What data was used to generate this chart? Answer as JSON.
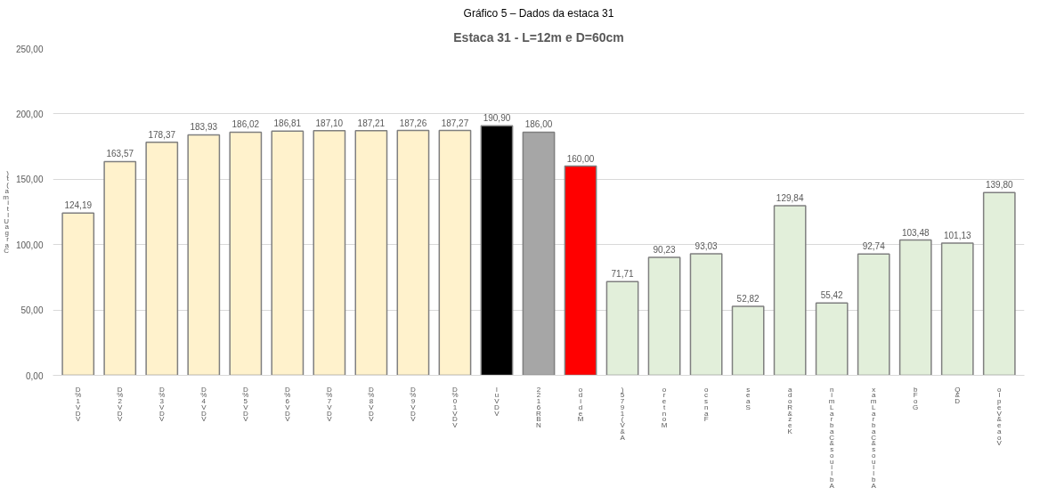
{
  "chart_data": {
    "type": "bar",
    "title": "Estaca 31 - L=12m e D=60cm",
    "subtitle": "Gráfico 5 – Dados da estaca 31",
    "ylabel": ")t(amitlUagraC",
    "categories": [
      "D%1VDV",
      "D%2VDV",
      "D%3VDV",
      "D%4VDV",
      "D%5VDV",
      "D%6VDV",
      "D%7VDV",
      "D%8VDV",
      "D%9VDV",
      "D%01VDV",
      "luVDV",
      "2216RBN",
      "odideM",
      ")5791(V&A",
      "oretnoM",
      "ocsnaF",
      "seaS",
      "adoR&zeK",
      "nimLarbaC&souilbA",
      "xamLarbaC&souilbA",
      "bFoG",
      "Q&D",
      "olpeV&eaoV"
    ],
    "values": [
      124.19,
      163.57,
      178.37,
      183.93,
      186.02,
      186.81,
      187.1,
      187.21,
      187.26,
      187.27,
      190.9,
      186.0,
      160.0,
      71.71,
      90.23,
      93.03,
      52.82,
      129.84,
      55.42,
      92.74,
      103.48,
      101.13,
      139.8
    ],
    "value_labels": [
      "124,19",
      "163,57",
      "178,37",
      "183,93",
      "186,02",
      "186,81",
      "187,10",
      "187,21",
      "187,26",
      "187,27",
      "190,90",
      "186,00",
      "160,00",
      "71,71",
      "90,23",
      "93,03",
      "52,82",
      "129,84",
      "55,42",
      "92,74",
      "103,48",
      "101,13",
      "139,80"
    ],
    "colors": [
      "#fff2cc",
      "#fff2cc",
      "#fff2cc",
      "#fff2cc",
      "#fff2cc",
      "#fff2cc",
      "#fff2cc",
      "#fff2cc",
      "#fff2cc",
      "#fff2cc",
      "#000000",
      "#a6a6a6",
      "#ff0000",
      "#e2efda",
      "#e2efda",
      "#e2efda",
      "#e2efda",
      "#e2efda",
      "#e2efda",
      "#e2efda",
      "#e2efda",
      "#e2efda",
      "#e2efda"
    ],
    "ylim": [
      0,
      250
    ],
    "yticks": [
      {
        "value": 0,
        "label": "0,00"
      },
      {
        "value": 50,
        "label": "50,00"
      },
      {
        "value": 100,
        "label": "100,00"
      },
      {
        "value": 150,
        "label": "150,00"
      },
      {
        "value": 200,
        "label": "200,00"
      },
      {
        "value": 250,
        "label": "250,00"
      }
    ],
    "grid": "y"
  }
}
